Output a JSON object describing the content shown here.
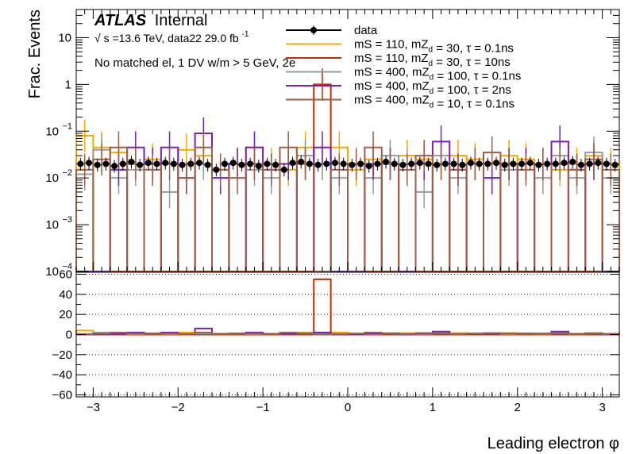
{
  "chart_data": {
    "type": "histogram",
    "title": "",
    "xlabel": "Leading electron φ",
    "ylabel": "Frac. Events",
    "xlim": [
      -3.2,
      3.2
    ],
    "ylim": [
      0.0001,
      40
    ],
    "log_y": true,
    "ratio_ylim": [
      -62,
      62
    ],
    "ratio_ticks": [
      -60,
      -40,
      -20,
      0,
      20,
      40,
      60
    ],
    "x_ticks": [
      -3,
      -2,
      -1,
      0,
      1,
      2,
      3
    ],
    "y_ticks": [
      {
        "label": "10",
        "value": 10
      },
      {
        "label": "1",
        "value": 1
      },
      {
        "label": "10",
        "exp": "−1",
        "value": 0.1
      },
      {
        "label": "10",
        "exp": "−2",
        "value": 0.01
      },
      {
        "label": "10",
        "exp": "−3",
        "value": 0.001
      },
      {
        "label": "10",
        "exp": "−4",
        "value": 0.0001
      }
    ],
    "annotations": {
      "atlas": "ATLAS",
      "internal": "Internal",
      "energy_prefix": "√",
      "energy_s": "s",
      "energy_text": "=13.6 TeV, data22 29.0 fb",
      "energy_exp": "-1",
      "selection": "No matched el, 1 DV w/m > 5 GeV, 2e"
    },
    "legend_position": "top-right",
    "legend": [
      {
        "key": "data",
        "parts": [
          {
            "t": "data"
          }
        ]
      },
      {
        "key": "s1",
        "parts": [
          {
            "t": "mS = 110, mZ"
          },
          {
            "t": "d",
            "sub": true
          },
          {
            "t": " = 30, τ = 0.1ns"
          }
        ]
      },
      {
        "key": "s2",
        "parts": [
          {
            "t": "mS = 110, mZ"
          },
          {
            "t": "d",
            "sub": true
          },
          {
            "t": " = 30, τ = 10ns"
          }
        ]
      },
      {
        "key": "s3",
        "parts": [
          {
            "t": "mS = 400, mZ"
          },
          {
            "t": "d",
            "sub": true
          },
          {
            "t": " = 100, τ = 0.1ns"
          }
        ]
      },
      {
        "key": "s4",
        "parts": [
          {
            "t": "mS = 400, mZ"
          },
          {
            "t": "d",
            "sub": true
          },
          {
            "t": " = 100, τ = 2ns"
          }
        ]
      },
      {
        "key": "s5",
        "parts": [
          {
            "t": "mS = 400, mZ"
          },
          {
            "t": "d",
            "sub": true
          },
          {
            "t": " = 10, τ = 0.1ns"
          }
        ]
      }
    ],
    "bin_edges": [
      -3.2,
      -3.0,
      -2.8,
      -2.6,
      -2.4,
      -2.2,
      -2.0,
      -1.8,
      -1.6,
      -1.4,
      -1.2,
      -1.0,
      -0.8,
      -0.6,
      -0.4,
      -0.2,
      0.0,
      0.2,
      0.4,
      0.6,
      0.8,
      1.0,
      1.2,
      1.4,
      1.6,
      1.8,
      2.0,
      2.2,
      2.4,
      2.6,
      2.8,
      3.0,
      3.2
    ],
    "data_x": [
      -3.15,
      -3.05,
      -2.95,
      -2.85,
      -2.75,
      -2.65,
      -2.55,
      -2.45,
      -2.35,
      -2.25,
      -2.15,
      -2.05,
      -1.95,
      -1.85,
      -1.75,
      -1.65,
      -1.55,
      -1.45,
      -1.35,
      -1.25,
      -1.15,
      -1.05,
      -0.95,
      -0.85,
      -0.75,
      -0.65,
      -0.55,
      -0.45,
      -0.35,
      -0.25,
      -0.15,
      -0.05,
      0.05,
      0.15,
      0.25,
      0.35,
      0.45,
      0.55,
      0.65,
      0.75,
      0.85,
      0.95,
      1.05,
      1.15,
      1.25,
      1.35,
      1.45,
      1.55,
      1.65,
      1.75,
      1.85,
      1.95,
      2.05,
      2.15,
      2.25,
      2.35,
      2.45,
      2.55,
      2.65,
      2.75,
      2.85,
      2.95,
      3.05,
      3.15
    ],
    "data_y": [
      0.02,
      0.021,
      0.019,
      0.02,
      0.018,
      0.02,
      0.022,
      0.019,
      0.021,
      0.02,
      0.021,
      0.02,
      0.019,
      0.02,
      0.021,
      0.019,
      0.015,
      0.02,
      0.021,
      0.019,
      0.02,
      0.018,
      0.02,
      0.019,
      0.015,
      0.021,
      0.022,
      0.02,
      0.019,
      0.02,
      0.021,
      0.02,
      0.019,
      0.02,
      0.018,
      0.02,
      0.022,
      0.02,
      0.019,
      0.02,
      0.021,
      0.02,
      0.019,
      0.02,
      0.02,
      0.019,
      0.021,
      0.02,
      0.02,
      0.021,
      0.019,
      0.02,
      0.02,
      0.021,
      0.019,
      0.02,
      0.02,
      0.021,
      0.022,
      0.019,
      0.02,
      0.021,
      0.02,
      0.019
    ],
    "series": [
      {
        "name": "mS = 110, mZd = 30, τ = 0.1ns",
        "color": "#f6a800",
        "values": [
          0.08,
          0.045,
          0.035,
          0.02,
          0.025,
          0.0001,
          0.04,
          0.03,
          0.015,
          0.02,
          0.045,
          0.02,
          0.015,
          0.045,
          0.02,
          0.045,
          0.015,
          0.025,
          0.02,
          0.03,
          0.025,
          0.02,
          0.03,
          0.025,
          0.02,
          0.03,
          0.025,
          0.02,
          0.015,
          0.02,
          0.03,
          0.02
        ]
      },
      {
        "name": "mS = 110, mZd = 30, τ = 10ns",
        "color": "#c22b00",
        "values": [
          0.0001,
          0.0001,
          0.0001,
          0.0001,
          0.0001,
          0.0001,
          0.0001,
          0.0001,
          0.0001,
          0.0001,
          0.0001,
          0.0001,
          0.0001,
          0.0001,
          1.0,
          0.0001,
          0.0001,
          0.0001,
          0.0001,
          0.0001,
          0.0001,
          0.0001,
          0.0001,
          0.0001,
          0.0001,
          0.0001,
          0.0001,
          0.0001,
          0.0001,
          0.0001,
          0.0001,
          0.0001
        ]
      },
      {
        "name": "mS = 400, mZd = 100, τ = 0.1ns",
        "color": "#8f9e9e",
        "values": [
          0.012,
          0.04,
          0.01,
          0.015,
          0.02,
          0.005,
          0.01,
          0.02,
          0.01,
          0.02,
          0.015,
          0.01,
          0.02,
          0.03,
          0.02,
          0.01,
          0.02,
          0.01,
          0.03,
          0.02,
          0.005,
          0.03,
          0.01,
          0.02,
          0.01,
          0.015,
          0.02,
          0.01,
          0.03,
          0.01,
          0.035,
          0.01
        ]
      },
      {
        "name": "mS = 400, mZd = 100, τ = 2ns",
        "color": "#7a1fb5",
        "values": [
          0.0001,
          0.0001,
          0.015,
          0.045,
          0.02,
          0.045,
          0.01,
          0.09,
          0.01,
          0.02,
          0.045,
          0.015,
          0.02,
          0.02,
          0.045,
          0.0001,
          0.0001,
          0.02,
          0.02,
          0.0001,
          0.02,
          0.06,
          0.015,
          0.02,
          0.01,
          0.02,
          0.02,
          0.02,
          0.06,
          0.015,
          0.02,
          0.0001
        ]
      },
      {
        "name": "mS = 400, mZd = 10, τ = 0.1ns",
        "color": "#9f5f45",
        "values": [
          0.015,
          0.025,
          0.045,
          0.02,
          0.015,
          0.02,
          0.01,
          0.045,
          0.015,
          0.01,
          0.02,
          0.015,
          0.045,
          0.02,
          0.0001,
          0.015,
          0.02,
          0.045,
          0.02,
          0.015,
          0.03,
          0.02,
          0.015,
          0.02,
          0.035,
          0.02,
          0.015,
          0.02,
          0.02,
          0.015,
          0.025,
          0.015
        ]
      }
    ],
    "ratio": {
      "mS = 110, mZd = 30, τ = 0.1ns": [
        4.0,
        2.0,
        2.0,
        1.0,
        1.0,
        0.0,
        2.0,
        1.5,
        1.0,
        1.0,
        2.0,
        1.0,
        1.0,
        2.0,
        1.0,
        2.0,
        1.0,
        1.0,
        1.0,
        1.5,
        1.0,
        1.0,
        1.5,
        1.0,
        1.0,
        1.5,
        1.0,
        1.0,
        1.0,
        1.0,
        1.5,
        1.0
      ],
      "mS = 110, mZd = 30, τ = 10ns": [
        0,
        0,
        0,
        0,
        0,
        0,
        0,
        0,
        0,
        0,
        0,
        0,
        0,
        0,
        55,
        0,
        0,
        0,
        0,
        0,
        0,
        0,
        0,
        0,
        0,
        0,
        0,
        0,
        0,
        0,
        0,
        0
      ],
      "mS = 400, mZd = 100, τ = 0.1ns": [
        0.5,
        2.0,
        0.5,
        0.5,
        1.0,
        0.5,
        0.5,
        1.0,
        0.5,
        1.0,
        0.5,
        0.5,
        1.0,
        1.5,
        1.0,
        0.5,
        1.0,
        0.5,
        1.5,
        1.0,
        0.5,
        1.5,
        0.5,
        1.0,
        0.5,
        0.5,
        1.0,
        0.5,
        1.5,
        0.5,
        1.5,
        0.5
      ],
      "mS = 400, mZd = 100, τ = 2ns": [
        0,
        0,
        0.5,
        2.0,
        1.0,
        2.0,
        0.5,
        6.0,
        0.5,
        1.0,
        2.0,
        0.5,
        1.0,
        1.0,
        2.0,
        0,
        0,
        1.0,
        1.0,
        0,
        1.0,
        3.0,
        0.5,
        1.0,
        0.5,
        1.0,
        1.0,
        1.0,
        3.0,
        0.5,
        1.0,
        0
      ],
      "mS = 400, mZd = 10, τ = 0.1ns": [
        0.5,
        1.0,
        2.0,
        1.0,
        0.5,
        1.0,
        0.5,
        2.0,
        0.5,
        0.5,
        1.0,
        0.5,
        2.0,
        1.0,
        0,
        0.5,
        1.0,
        2.0,
        1.0,
        0.5,
        1.5,
        1.0,
        0.5,
        1.0,
        1.5,
        1.0,
        0.5,
        1.0,
        1.0,
        0.5,
        1.0,
        0.5
      ]
    }
  }
}
